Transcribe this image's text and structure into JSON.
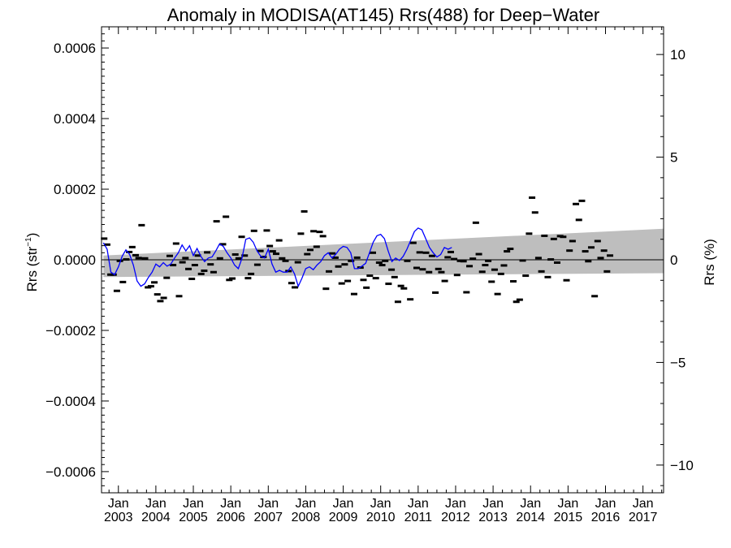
{
  "chart_data": {
    "type": "scatter",
    "title": "Anomaly in MODISA(AT145) Rrs(488) for Deep−Water",
    "ylabel_left": "Rrs (str",
    "ylabel_left_sup": "−1",
    "ylabel_left_close": ")",
    "ylabel_right": "Rrs (%)",
    "ylim_left": [
      -0.00066,
      0.00066
    ],
    "ylim_right": [
      -11.35,
      11.35
    ],
    "xlim": [
      2002.55,
      2017.55
    ],
    "left_ticks": [
      {
        "value": 0.0006,
        "label": "0.0006"
      },
      {
        "value": 0.0004,
        "label": "0.0004"
      },
      {
        "value": 0.0002,
        "label": "0.0002"
      },
      {
        "value": 0.0,
        "label": "0.0000"
      },
      {
        "value": -0.0002,
        "label": "−0.0002"
      },
      {
        "value": -0.0004,
        "label": "−0.0004"
      },
      {
        "value": -0.0006,
        "label": "−0.0006"
      }
    ],
    "right_ticks": [
      {
        "value": 10,
        "label": "10"
      },
      {
        "value": 5,
        "label": "5"
      },
      {
        "value": 0,
        "label": "0"
      },
      {
        "value": -5,
        "label": "−5"
      },
      {
        "value": -10,
        "label": "−10"
      }
    ],
    "x_ticks": [
      {
        "value": 2003,
        "month": "Jan",
        "year": "2003"
      },
      {
        "value": 2004,
        "month": "Jan",
        "year": "2004"
      },
      {
        "value": 2005,
        "month": "Jan",
        "year": "2005"
      },
      {
        "value": 2006,
        "month": "Jan",
        "year": "2006"
      },
      {
        "value": 2007,
        "month": "Jan",
        "year": "2007"
      },
      {
        "value": 2008,
        "month": "Jan",
        "year": "2008"
      },
      {
        "value": 2009,
        "month": "Jan",
        "year": "2009"
      },
      {
        "value": 2010,
        "month": "Jan",
        "year": "2010"
      },
      {
        "value": 2011,
        "month": "Jan",
        "year": "2011"
      },
      {
        "value": 2012,
        "month": "Jan",
        "year": "2012"
      },
      {
        "value": 2013,
        "month": "Jan",
        "year": "2013"
      },
      {
        "value": 2014,
        "month": "Jan",
        "year": "2014"
      },
      {
        "value": 2015,
        "month": "Jan",
        "year": "2015"
      },
      {
        "value": 2016,
        "month": "Jan",
        "year": "2016"
      },
      {
        "value": 2017,
        "month": "Jan",
        "year": "2017"
      }
    ],
    "uncertainty_band": {
      "x": [
        2002.6,
        2017.55
      ],
      "upper": [
        1.2e-05,
        8.8e-05
      ],
      "lower": [
        -4.9e-05,
        -3.8e-05
      ],
      "color": "#bebebe"
    },
    "zero_line": 0.0,
    "points_color": "#000000",
    "smooth_color": "#0000ff",
    "points": [
      [
        2002.62,
        6e-05
      ],
      [
        2002.7,
        4.3e-05
      ],
      [
        2002.79,
        -4.2e-05
      ],
      [
        2002.87,
        -4.2e-05
      ],
      [
        2002.96,
        -8.8e-05
      ],
      [
        2003.04,
        -3e-06
      ],
      [
        2003.12,
        -6.3e-05
      ],
      [
        2003.21,
        1e-06
      ],
      [
        2003.29,
        2.2e-05
      ],
      [
        2003.37,
        3.6e-05
      ],
      [
        2003.46,
        1.3e-05
      ],
      [
        2003.54,
        5e-06
      ],
      [
        2003.62,
        9.8e-05
      ],
      [
        2003.71,
        4e-06
      ],
      [
        2003.79,
        -7.8e-05
      ],
      [
        2003.87,
        -7.5e-05
      ],
      [
        2003.96,
        -6.4e-05
      ],
      [
        2004.04,
        -9.8e-05
      ],
      [
        2004.12,
        -0.000117
      ],
      [
        2004.21,
        -0.000108
      ],
      [
        2004.29,
        -5.1e-05
      ],
      [
        2004.37,
        1.1e-05
      ],
      [
        2004.46,
        -1.5e-05
      ],
      [
        2004.54,
        4.6e-05
      ],
      [
        2004.62,
        -0.000103
      ],
      [
        2004.71,
        -7e-06
      ],
      [
        2004.79,
        5e-06
      ],
      [
        2004.87,
        -2.6e-05
      ],
      [
        2004.96,
        -5.4e-05
      ],
      [
        2005.04,
        -1.5e-05
      ],
      [
        2005.12,
        1.2e-05
      ],
      [
        2005.21,
        -4e-05
      ],
      [
        2005.29,
        -3.1e-05
      ],
      [
        2005.37,
        2.1e-05
      ],
      [
        2005.46,
        -1.3e-05
      ],
      [
        2005.54,
        -3.5e-05
      ],
      [
        2005.62,
        0.000109
      ],
      [
        2005.71,
        4e-06
      ],
      [
        2005.79,
        4.4e-05
      ],
      [
        2005.87,
        0.000122
      ],
      [
        2005.96,
        -5.7e-05
      ],
      [
        2006.04,
        -5.3e-05
      ],
      [
        2006.12,
        1.5e-05
      ],
      [
        2006.21,
        4e-06
      ],
      [
        2006.29,
        6.5e-05
      ],
      [
        2006.37,
        1.2e-05
      ],
      [
        2006.46,
        -5.2e-05
      ],
      [
        2006.54,
        -4e-05
      ],
      [
        2006.62,
        8.2e-05
      ],
      [
        2006.71,
        -1.4e-05
      ],
      [
        2006.79,
        2.5e-05
      ],
      [
        2006.87,
        8e-06
      ],
      [
        2006.96,
        8.3e-05
      ],
      [
        2007.04,
        3.9e-05
      ],
      [
        2007.12,
        2.4e-05
      ],
      [
        2007.21,
        1.7e-05
      ],
      [
        2007.29,
        5.5e-05
      ],
      [
        2007.37,
        4e-06
      ],
      [
        2007.46,
        -3e-06
      ],
      [
        2007.54,
        -3.2e-05
      ],
      [
        2007.62,
        -6.6e-05
      ],
      [
        2007.71,
        -7.8e-05
      ],
      [
        2007.79,
        -7e-06
      ],
      [
        2007.87,
        7.4e-05
      ],
      [
        2007.96,
        0.000137
      ],
      [
        2008.04,
        1.6e-05
      ],
      [
        2008.12,
        2.8e-05
      ],
      [
        2008.21,
        8.1e-05
      ],
      [
        2008.29,
        3.7e-05
      ],
      [
        2008.37,
        7.9e-05
      ],
      [
        2008.46,
        6.7e-05
      ],
      [
        2008.54,
        -8.2e-05
      ],
      [
        2008.62,
        -3.3e-05
      ],
      [
        2008.71,
        1.8e-05
      ],
      [
        2008.79,
        6e-06
      ],
      [
        2008.87,
        -1.9e-05
      ],
      [
        2008.96,
        -6.7e-05
      ],
      [
        2009.04,
        -1.3e-05
      ],
      [
        2009.12,
        -6e-05
      ],
      [
        2009.21,
        -3e-06
      ],
      [
        2009.29,
        -9.7e-05
      ],
      [
        2009.37,
        6e-06
      ],
      [
        2009.46,
        -2.2e-05
      ],
      [
        2009.54,
        -5.7e-05
      ],
      [
        2009.62,
        -7.9e-05
      ],
      [
        2009.71,
        -4.5e-05
      ],
      [
        2009.79,
        2e-05
      ],
      [
        2009.87,
        -5.2e-05
      ],
      [
        2009.96,
        -8e-06
      ],
      [
        2010.04,
        -1.5e-05
      ],
      [
        2010.12,
        -3e-06
      ],
      [
        2010.21,
        -6.8e-05
      ],
      [
        2010.29,
        -2.8e-05
      ],
      [
        2010.37,
        -4.9e-05
      ],
      [
        2010.46,
        -0.000119
      ],
      [
        2010.54,
        -7.4e-05
      ],
      [
        2010.62,
        -8.1e-05
      ],
      [
        2010.71,
        -3e-06
      ],
      [
        2010.79,
        -0.000112
      ],
      [
        2010.87,
        4.8e-05
      ],
      [
        2010.96,
        -2.3e-05
      ],
      [
        2011.04,
        2.1e-05
      ],
      [
        2011.12,
        -2.7e-05
      ],
      [
        2011.21,
        2e-05
      ],
      [
        2011.29,
        -3.5e-05
      ],
      [
        2011.37,
        1.1e-05
      ],
      [
        2011.46,
        -9.3e-05
      ],
      [
        2011.54,
        -2.6e-05
      ],
      [
        2011.62,
        -3.5e-05
      ],
      [
        2011.71,
        -6e-05
      ],
      [
        2011.79,
        7e-06
      ],
      [
        2011.87,
        2.2e-05
      ],
      [
        2011.96,
        2e-06
      ],
      [
        2012.04,
        -4.3e-05
      ],
      [
        2012.12,
        -3e-06
      ],
      [
        2012.21,
        -4e-06
      ],
      [
        2012.29,
        -9.2e-05
      ],
      [
        2012.37,
        -1.8e-05
      ],
      [
        2012.46,
        3e-06
      ],
      [
        2012.54,
        0.000105
      ],
      [
        2012.62,
        1.6e-05
      ],
      [
        2012.71,
        -3.4e-05
      ],
      [
        2012.79,
        -1.5e-05
      ],
      [
        2012.87,
        -3e-06
      ],
      [
        2012.96,
        -6.2e-05
      ],
      [
        2013.04,
        -2.8e-05
      ],
      [
        2013.12,
        -9.7e-05
      ],
      [
        2013.21,
        -4e-05
      ],
      [
        2013.29,
        -1.6e-05
      ],
      [
        2013.37,
        2.4e-05
      ],
      [
        2013.46,
        3.1e-05
      ],
      [
        2013.54,
        -6.1e-05
      ],
      [
        2013.62,
        -0.000119
      ],
      [
        2013.71,
        -0.000113
      ],
      [
        2013.79,
        -2e-06
      ],
      [
        2013.87,
        -4.5e-05
      ],
      [
        2013.96,
        7.4e-05
      ],
      [
        2014.04,
        0.000176
      ],
      [
        2014.12,
        0.000134
      ],
      [
        2014.21,
        5e-06
      ],
      [
        2014.29,
        -3.3e-05
      ],
      [
        2014.37,
        6.8e-05
      ],
      [
        2014.46,
        -4.9e-05
      ],
      [
        2014.54,
        1e-06
      ],
      [
        2014.62,
        5.9e-05
      ],
      [
        2014.71,
        -8e-06
      ],
      [
        2014.79,
        6.7e-05
      ],
      [
        2014.87,
        6.5e-05
      ],
      [
        2014.96,
        -5.8e-05
      ],
      [
        2015.04,
        2.6e-05
      ],
      [
        2015.12,
        5.3e-05
      ],
      [
        2015.21,
        0.000158
      ],
      [
        2015.29,
        0.000113
      ],
      [
        2015.37,
        0.000167
      ],
      [
        2015.46,
        2.4e-05
      ],
      [
        2015.54,
        -4e-06
      ],
      [
        2015.62,
        3.5e-05
      ],
      [
        2015.71,
        -0.000103
      ],
      [
        2015.79,
        5.3e-05
      ],
      [
        2015.87,
        5e-06
      ],
      [
        2015.96,
        2.6e-05
      ],
      [
        2016.04,
        -3.3e-05
      ],
      [
        2016.12,
        1.2e-05
      ]
    ],
    "smooth_line": [
      [
        2002.6,
        4.8e-05
      ],
      [
        2002.7,
        3e-05
      ],
      [
        2002.8,
        -3.5e-05
      ],
      [
        2002.9,
        -4.2e-05
      ],
      [
        2003.0,
        -2e-05
      ],
      [
        2003.1,
        1e-05
      ],
      [
        2003.2,
        2.8e-05
      ],
      [
        2003.3,
        1.5e-05
      ],
      [
        2003.4,
        -1.5e-05
      ],
      [
        2003.5,
        -6e-05
      ],
      [
        2003.6,
        -7.5e-05
      ],
      [
        2003.7,
        -6.8e-05
      ],
      [
        2003.8,
        -5e-05
      ],
      [
        2003.9,
        -3.5e-05
      ],
      [
        2004.0,
        -1.2e-05
      ],
      [
        2004.1,
        -2e-05
      ],
      [
        2004.2,
        -8e-06
      ],
      [
        2004.3,
        -1.8e-05
      ],
      [
        2004.4,
        -1.2e-05
      ],
      [
        2004.5,
        5e-06
      ],
      [
        2004.6,
        2e-05
      ],
      [
        2004.7,
        4.2e-05
      ],
      [
        2004.8,
        2.5e-05
      ],
      [
        2004.9,
        4e-05
      ],
      [
        2005.0,
        1.2e-05
      ],
      [
        2005.1,
        3.2e-05
      ],
      [
        2005.2,
        1e-05
      ],
      [
        2005.3,
        -5e-06
      ],
      [
        2005.4,
        5e-06
      ],
      [
        2005.5,
        8e-06
      ],
      [
        2005.6,
        2.5e-05
      ],
      [
        2005.7,
        4.5e-05
      ],
      [
        2005.8,
        3.8e-05
      ],
      [
        2005.9,
        2e-05
      ],
      [
        2006.0,
        5e-06
      ],
      [
        2006.1,
        -1.5e-05
      ],
      [
        2006.2,
        -2.5e-05
      ],
      [
        2006.3,
        5e-06
      ],
      [
        2006.4,
        5.8e-05
      ],
      [
        2006.5,
        6.2e-05
      ],
      [
        2006.6,
        5e-05
      ],
      [
        2006.7,
        2.5e-05
      ],
      [
        2006.8,
        1e-05
      ],
      [
        2006.9,
        5e-06
      ],
      [
        2007.0,
        3e-05
      ],
      [
        2007.1,
        -1.2e-05
      ],
      [
        2007.2,
        -3.5e-05
      ],
      [
        2007.3,
        -3e-05
      ],
      [
        2007.4,
        -3.5e-05
      ],
      [
        2007.5,
        -3.5e-05
      ],
      [
        2007.6,
        -2e-05
      ],
      [
        2007.7,
        -4e-05
      ],
      [
        2007.8,
        -7.5e-05
      ],
      [
        2007.9,
        -5.2e-05
      ],
      [
        2008.0,
        -2.5e-05
      ],
      [
        2008.1,
        -2e-05
      ],
      [
        2008.2,
        -2.8e-05
      ],
      [
        2008.3,
        -1.5e-05
      ],
      [
        2008.4,
        -5e-06
      ],
      [
        2008.5,
        1.2e-05
      ],
      [
        2008.6,
        2e-05
      ],
      [
        2008.7,
        5e-06
      ],
      [
        2008.8,
        1.5e-05
      ],
      [
        2008.9,
        3e-05
      ],
      [
        2009.0,
        3.8e-05
      ],
      [
        2009.1,
        3.5e-05
      ],
      [
        2009.2,
        2e-05
      ],
      [
        2009.3,
        -2.5e-05
      ],
      [
        2009.4,
        -2.5e-05
      ],
      [
        2009.5,
        -1.8e-05
      ],
      [
        2009.6,
        -1e-05
      ],
      [
        2009.7,
        2e-05
      ],
      [
        2009.8,
        5e-05
      ],
      [
        2009.9,
        6.8e-05
      ],
      [
        2010.0,
        7.2e-05
      ],
      [
        2010.1,
        6e-05
      ],
      [
        2010.2,
        2.5e-05
      ],
      [
        2010.3,
        -5e-06
      ],
      [
        2010.4,
        5e-06
      ],
      [
        2010.5,
        -2e-06
      ],
      [
        2010.6,
        1e-05
      ],
      [
        2010.7,
        3e-05
      ],
      [
        2010.8,
        5.5e-05
      ],
      [
        2010.9,
        8e-05
      ],
      [
        2011.0,
        9e-05
      ],
      [
        2011.1,
        8.5e-05
      ],
      [
        2011.2,
        6e-05
      ],
      [
        2011.3,
        3.5e-05
      ],
      [
        2011.4,
        2e-05
      ],
      [
        2011.5,
        8e-06
      ],
      [
        2011.6,
        1.5e-05
      ],
      [
        2011.7,
        3.5e-05
      ],
      [
        2011.8,
        3e-05
      ],
      [
        2011.9,
        3.5e-05
      ]
    ]
  }
}
